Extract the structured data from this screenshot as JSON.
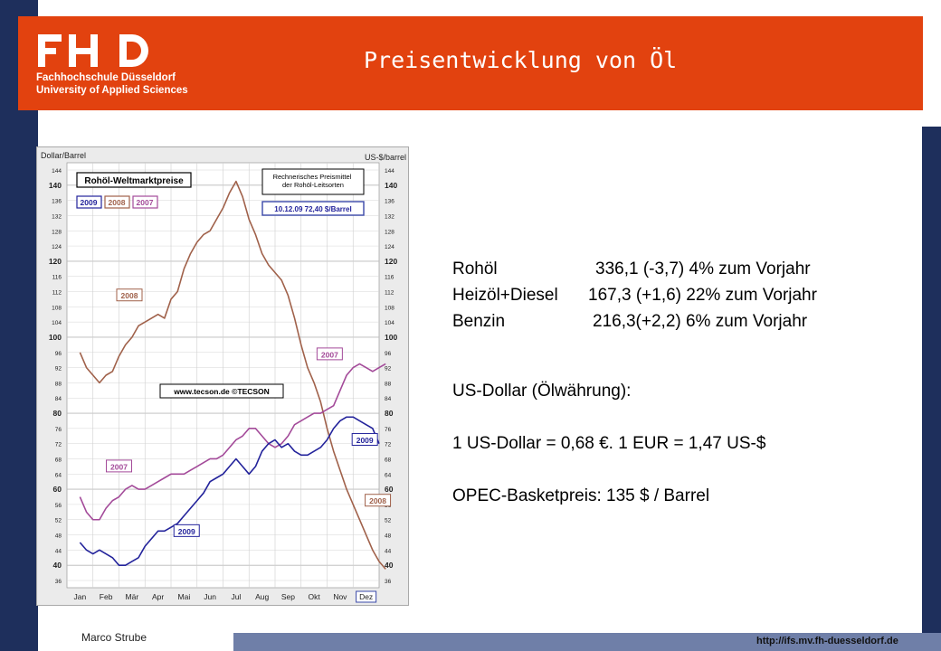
{
  "header": {
    "logo_line1": "Fachhochschule Düsseldorf",
    "logo_line2": "University of Applied Sciences",
    "title": "Preisentwicklung von Öl",
    "accent_color": "#e2420f",
    "frame_color": "#1e2f5c"
  },
  "chart_data": {
    "type": "line",
    "title": "Rohöl-Weltmarktpreise",
    "ylabel_left": "Dollar/Barrel",
    "ylabel_right": "US-$/barrel",
    "ylim": [
      36,
      144
    ],
    "yticks": [
      "36",
      "40",
      "44",
      "48",
      "52",
      "56",
      "60",
      "64",
      "68",
      "72",
      "76",
      "80",
      "84",
      "88",
      "92",
      "96",
      "100",
      "104",
      "108",
      "112",
      "116",
      "120",
      "124",
      "128",
      "132",
      "136",
      "140",
      "144"
    ],
    "months": [
      "Jan",
      "Feb",
      "Mär",
      "Apr",
      "Mai",
      "Jun",
      "Jul",
      "Aug",
      "Sep",
      "Okt",
      "Nov",
      "Dez"
    ],
    "grid": true,
    "legend_years": [
      "2009",
      "2008",
      "2007"
    ],
    "info_box": "Rechnerisches Preismittel der Rohöl-Leitsorten",
    "info_value": "10.12.09   72,40 $/Barrel",
    "watermark": "www.tecson.de  ©TECSON",
    "series": [
      {
        "name": "2008",
        "color": "#a0614a",
        "labels": [
          {
            "text": "2008",
            "x": 1.9,
            "y": 111
          },
          {
            "text": "2008",
            "x": 11.45,
            "y": 57
          }
        ],
        "x": [
          0,
          0.25,
          0.5,
          0.75,
          1,
          1.25,
          1.5,
          1.75,
          2,
          2.25,
          2.5,
          2.75,
          3,
          3.25,
          3.5,
          3.75,
          4,
          4.25,
          4.5,
          4.75,
          5,
          5.25,
          5.5,
          5.75,
          6,
          6.25,
          6.5,
          6.75,
          7,
          7.25,
          7.5,
          7.75,
          8,
          8.25,
          8.5,
          8.75,
          9,
          9.25,
          9.5,
          9.75,
          10,
          10.25,
          10.5,
          10.75,
          11,
          11.25,
          11.5,
          11.75
        ],
        "values": [
          96,
          92,
          90,
          88,
          90,
          91,
          95,
          98,
          100,
          103,
          104,
          105,
          106,
          105,
          110,
          112,
          118,
          122,
          125,
          127,
          128,
          131,
          134,
          138,
          141,
          137,
          131,
          127,
          122,
          119,
          117,
          115,
          111,
          105,
          98,
          92,
          88,
          83,
          76,
          70,
          65,
          60,
          56,
          52,
          48,
          44,
          41,
          39
        ]
      },
      {
        "name": "2007",
        "color": "#a34a99",
        "labels": [
          {
            "text": "2007",
            "x": 1.5,
            "y": 66
          },
          {
            "text": "2007",
            "x": 9.6,
            "y": 95.5
          }
        ],
        "x": [
          0,
          0.25,
          0.5,
          0.75,
          1,
          1.25,
          1.5,
          1.75,
          2,
          2.25,
          2.5,
          2.75,
          3,
          3.25,
          3.5,
          3.75,
          4,
          4.25,
          4.5,
          4.75,
          5,
          5.25,
          5.5,
          5.75,
          6,
          6.25,
          6.5,
          6.75,
          7,
          7.25,
          7.5,
          7.75,
          8,
          8.25,
          8.5,
          8.75,
          9,
          9.25,
          9.5,
          9.75,
          10,
          10.25,
          10.5,
          10.75,
          11,
          11.25,
          11.5,
          11.75
        ],
        "values": [
          58,
          54,
          52,
          52,
          55,
          57,
          58,
          60,
          61,
          60,
          60,
          61,
          62,
          63,
          64,
          64,
          64,
          65,
          66,
          67,
          68,
          68,
          69,
          71,
          73,
          74,
          76,
          76,
          74,
          72,
          71,
          72,
          74,
          77,
          78,
          79,
          80,
          80,
          81,
          82,
          86,
          90,
          92,
          93,
          92,
          91,
          92,
          93
        ]
      },
      {
        "name": "2009",
        "color": "#23239b",
        "labels": [
          {
            "text": "2009",
            "x": 4.1,
            "y": 49
          },
          {
            "text": "2009",
            "x": 10.95,
            "y": 73
          }
        ],
        "x": [
          0,
          0.25,
          0.5,
          0.75,
          1,
          1.25,
          1.5,
          1.75,
          2,
          2.25,
          2.5,
          2.75,
          3,
          3.25,
          3.5,
          3.75,
          4,
          4.25,
          4.5,
          4.75,
          5,
          5.25,
          5.5,
          5.75,
          6,
          6.25,
          6.5,
          6.75,
          7,
          7.25,
          7.5,
          7.75,
          8,
          8.25,
          8.5,
          8.75,
          9,
          9.25,
          9.5,
          9.75,
          10,
          10.25,
          10.5,
          10.75,
          11,
          11.25,
          11.5
        ],
        "values": [
          46,
          44,
          43,
          44,
          43,
          42,
          40,
          40,
          41,
          42,
          45,
          47,
          49,
          49,
          50,
          51,
          53,
          55,
          57,
          59,
          62,
          63,
          64,
          66,
          68,
          66,
          64,
          66,
          70,
          72,
          73,
          71,
          72,
          70,
          69,
          69,
          70,
          71,
          73,
          76,
          78,
          79,
          79,
          78,
          77,
          76,
          72
        ]
      }
    ]
  },
  "stats": [
    {
      "label": "Rohöl",
      "value": "336,1 (-3,7)  4% zum Vorjahr"
    },
    {
      "label": "Heizöl+Diesel",
      "value": "167,3 (+1,6) 22% zum Vorjahr"
    },
    {
      "label": "Benzin",
      "value": " 216,3(+2,2)  6% zum Vorjahr"
    }
  ],
  "currency_heading": "US-Dollar (Ölwährung):",
  "exchange_rate": "1 US-Dollar = 0,68 €. 1 EUR = 1,47 US-$",
  "opec": "OPEC-Basketpreis: 135 $ / Barrel",
  "footer": {
    "author": "Marco Strube",
    "url": "http://ifs.mv.fh-duesseldorf.de"
  }
}
